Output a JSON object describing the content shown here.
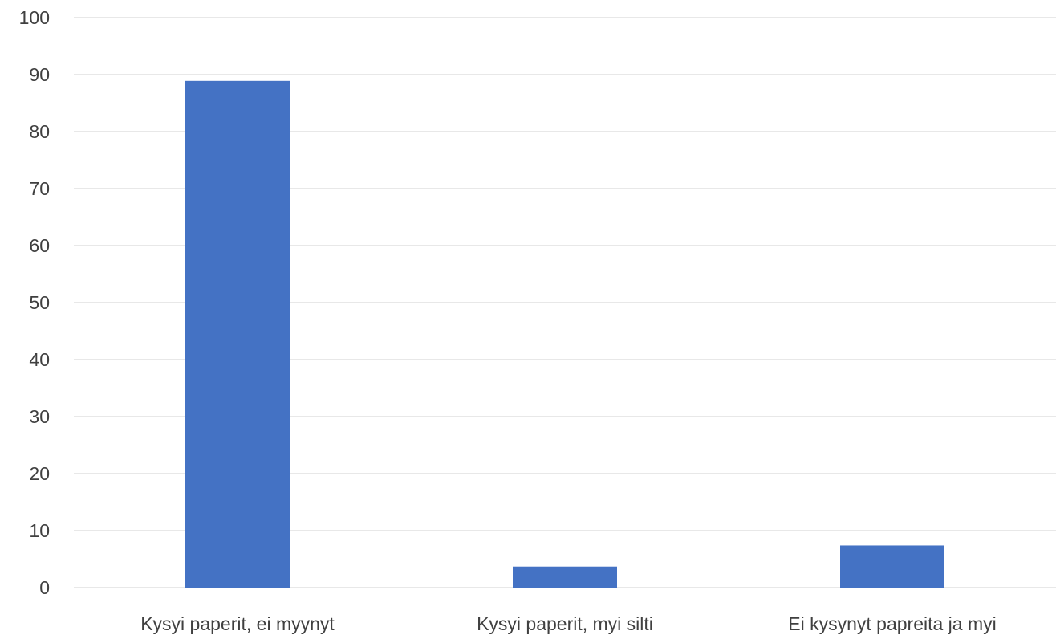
{
  "chart_data": {
    "type": "bar",
    "title": "",
    "xlabel": "",
    "ylabel": "",
    "categories": [
      "Kysyi paperit, ei myynyt",
      "Kysyi paperit, myi silti",
      "Ei kysynyt papreita ja myi"
    ],
    "values": [
      88.9,
      3.7,
      7.4
    ],
    "ylim": [
      0,
      100
    ],
    "yticks": [
      "0",
      "10",
      "20",
      "30",
      "40",
      "50",
      "60",
      "70",
      "80",
      "90",
      "100"
    ],
    "grid": true,
    "legend": "none",
    "bar_color": "#4472c4"
  }
}
